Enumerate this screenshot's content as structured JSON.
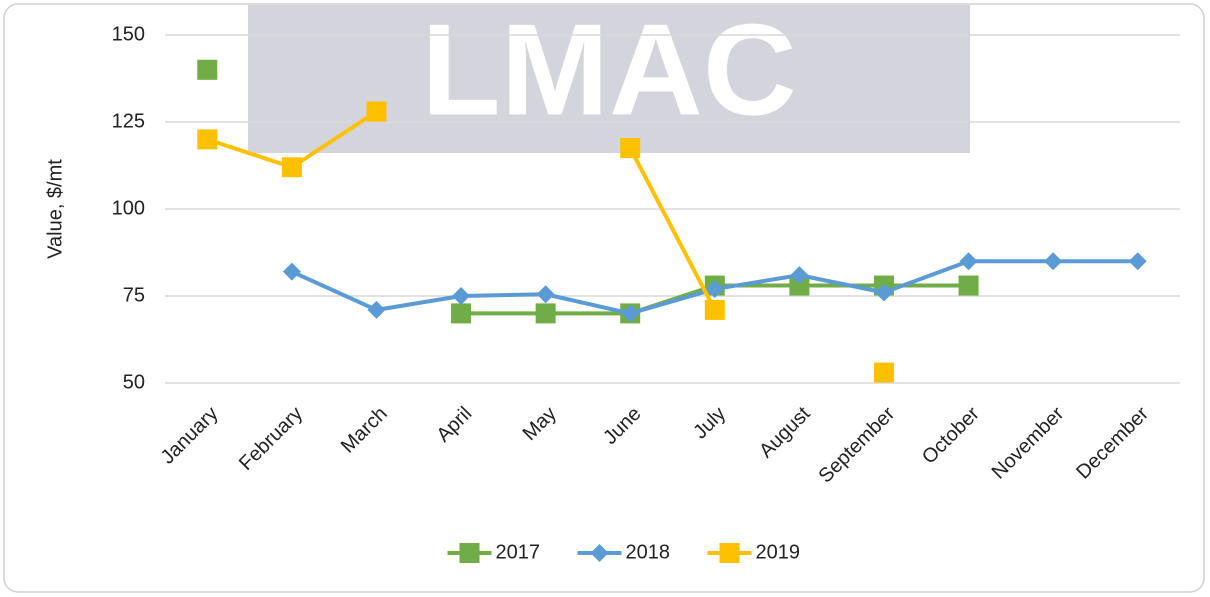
{
  "chart_data": {
    "type": "line",
    "watermark": "LMAC",
    "y_label": "Value, $/mt",
    "categories": [
      "January",
      "February",
      "March",
      "April",
      "May",
      "June",
      "July",
      "August",
      "September",
      "October",
      "November",
      "December"
    ],
    "series": [
      {
        "name": "2017",
        "color": "#70ad47",
        "marker": "square",
        "values": [
          140,
          null,
          null,
          70,
          70,
          70,
          78,
          78,
          78,
          78,
          null,
          null
        ]
      },
      {
        "name": "2018",
        "color": "#5b9bd5",
        "marker": "diamond",
        "values": [
          null,
          82,
          71,
          75,
          75.5,
          70,
          77,
          81,
          76,
          85,
          85,
          85
        ]
      },
      {
        "name": "2019",
        "color": "#ffc000",
        "marker": "square",
        "values": [
          120,
          112,
          128,
          null,
          null,
          117.5,
          71,
          null,
          53,
          null,
          null,
          null
        ]
      }
    ],
    "ylim": [
      50,
      150
    ],
    "yticks": [
      50,
      75,
      100,
      125,
      150
    ],
    "grid": true,
    "legend": "bottom"
  }
}
